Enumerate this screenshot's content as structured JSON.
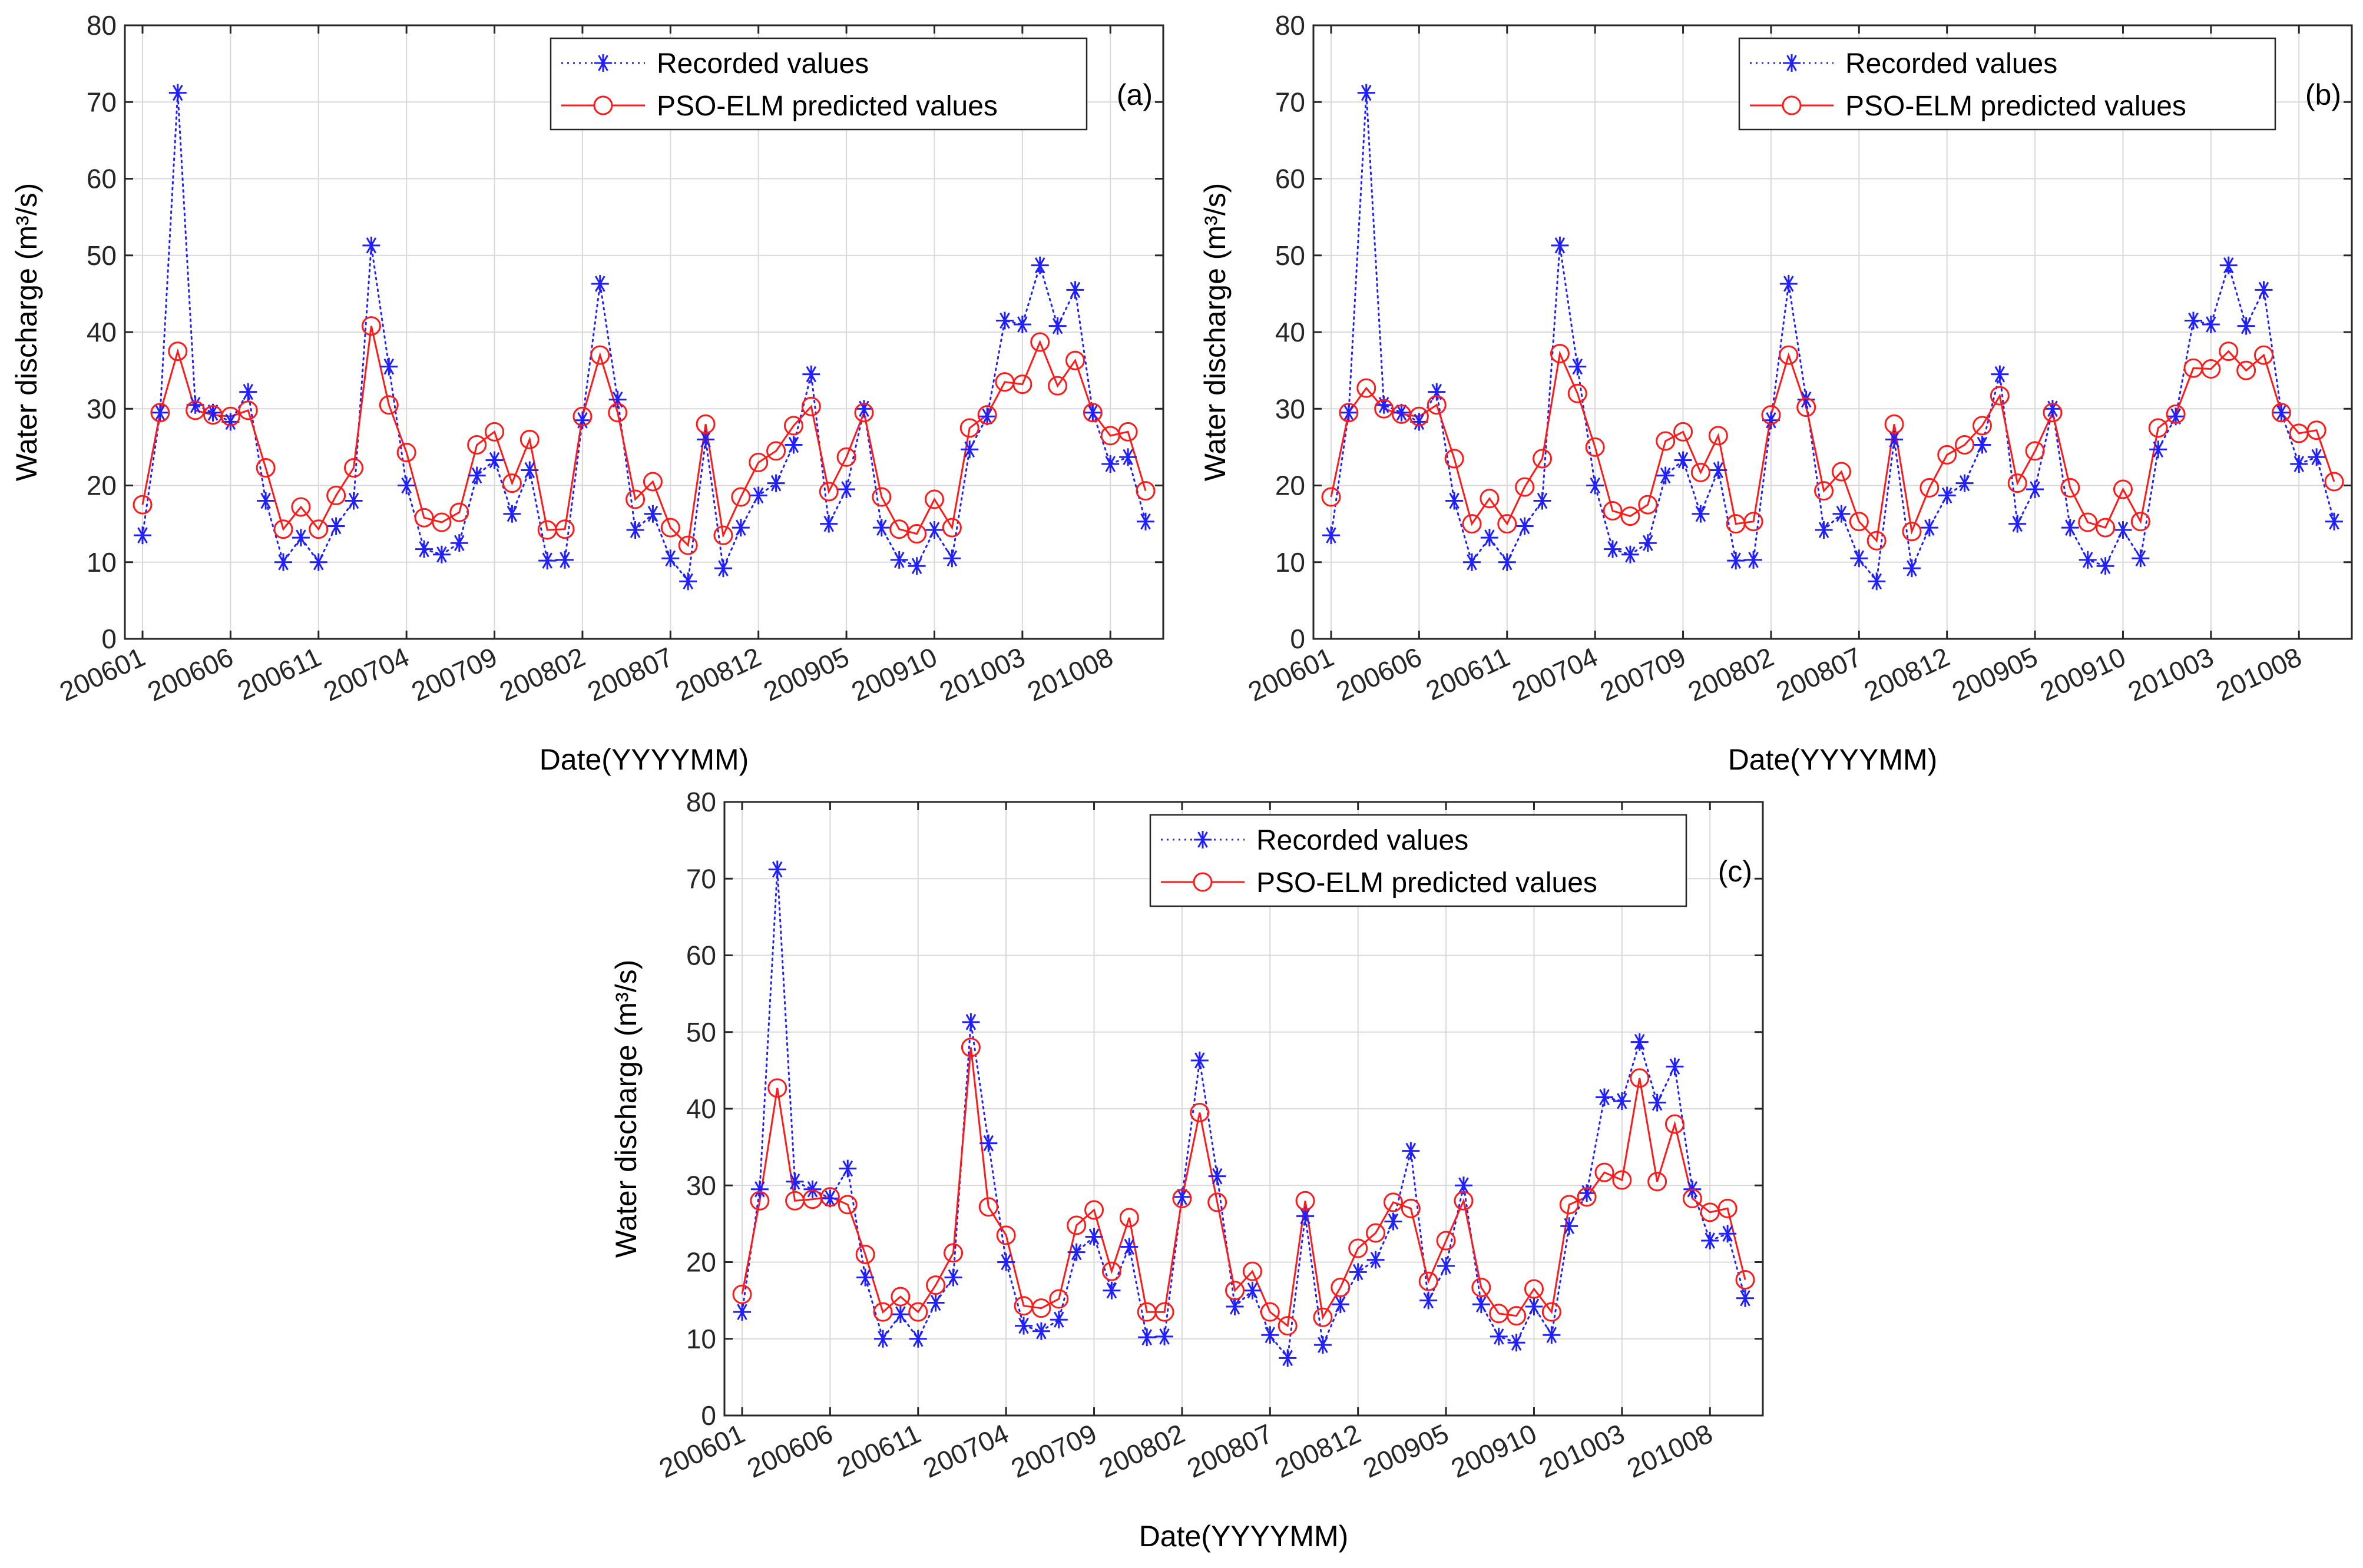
{
  "colors": {
    "recorded": "#1f1fff",
    "predicted": "#ff1a1a",
    "axis": "#262626",
    "grid": "#d9d9d9"
  },
  "chart_data": [
    {
      "type": "line",
      "panel_label": "(a)",
      "xlabel": "Date(YYYYMM)",
      "ylabel": "Water discharge (m³/s)",
      "ylim": [
        0,
        80
      ],
      "yticks": [
        0,
        10,
        20,
        30,
        40,
        50,
        60,
        70,
        80
      ],
      "xticks": [
        {
          "index": 0,
          "label": "200601"
        },
        {
          "index": 5,
          "label": "200606"
        },
        {
          "index": 10,
          "label": "200611"
        },
        {
          "index": 15,
          "label": "200704"
        },
        {
          "index": 20,
          "label": "200709"
        },
        {
          "index": 25,
          "label": "200802"
        },
        {
          "index": 30,
          "label": "200807"
        },
        {
          "index": 35,
          "label": "200812"
        },
        {
          "index": 40,
          "label": "200905"
        },
        {
          "index": 45,
          "label": "200910"
        },
        {
          "index": 50,
          "label": "201003"
        },
        {
          "index": 55,
          "label": "201008"
        }
      ],
      "legend_position": "top-right",
      "series": [
        {
          "name": "Recorded values",
          "style": "dotted-star",
          "values": [
            13.5,
            29.5,
            71.2,
            30.5,
            29.5,
            28.3,
            32.2,
            18.0,
            10.0,
            13.2,
            10.0,
            14.7,
            18.0,
            51.3,
            35.5,
            20.0,
            11.7,
            11.0,
            12.5,
            21.3,
            23.3,
            16.3,
            22.0,
            10.2,
            10.3,
            28.5,
            46.3,
            31.2,
            14.2,
            16.3,
            10.5,
            7.5,
            26.0,
            9.2,
            14.5,
            18.7,
            20.3,
            25.3,
            34.5,
            15.0,
            19.5,
            30.0,
            14.5,
            10.3,
            9.5,
            14.2,
            10.5,
            24.7,
            29.0,
            41.5,
            41.0,
            48.7,
            40.8,
            45.5,
            29.5,
            22.8,
            23.7,
            15.3
          ]
        },
        {
          "name": "PSO-ELM predicted values",
          "style": "solid-circle",
          "values": [
            17.5,
            29.5,
            37.5,
            29.8,
            29.2,
            29.0,
            29.8,
            22.3,
            14.3,
            17.2,
            14.3,
            18.7,
            22.3,
            40.8,
            30.5,
            24.3,
            15.8,
            15.2,
            16.5,
            25.3,
            27.0,
            20.3,
            26.0,
            14.2,
            14.3,
            29.0,
            37.0,
            29.5,
            18.2,
            20.5,
            14.5,
            12.2,
            28.0,
            13.5,
            18.5,
            23.0,
            24.5,
            27.8,
            30.3,
            19.2,
            23.7,
            29.5,
            18.5,
            14.3,
            13.7,
            18.2,
            14.5,
            27.5,
            29.2,
            33.5,
            33.2,
            38.7,
            33.0,
            36.3,
            29.5,
            26.5,
            27.0,
            19.3
          ]
        }
      ]
    },
    {
      "type": "line",
      "panel_label": "(b)",
      "xlabel": "Date(YYYYMM)",
      "ylabel": "Water discharge (m³/s)",
      "ylim": [
        0,
        80
      ],
      "yticks": [
        0,
        10,
        20,
        30,
        40,
        50,
        60,
        70,
        80
      ],
      "xticks": [
        {
          "index": 0,
          "label": "200601"
        },
        {
          "index": 5,
          "label": "200606"
        },
        {
          "index": 10,
          "label": "200611"
        },
        {
          "index": 15,
          "label": "200704"
        },
        {
          "index": 20,
          "label": "200709"
        },
        {
          "index": 25,
          "label": "200802"
        },
        {
          "index": 30,
          "label": "200807"
        },
        {
          "index": 35,
          "label": "200812"
        },
        {
          "index": 40,
          "label": "200905"
        },
        {
          "index": 45,
          "label": "200910"
        },
        {
          "index": 50,
          "label": "201003"
        },
        {
          "index": 55,
          "label": "201008"
        }
      ],
      "legend_position": "top-right",
      "series": [
        {
          "name": "Recorded values",
          "style": "dotted-star",
          "values": [
            13.5,
            29.5,
            71.2,
            30.5,
            29.5,
            28.3,
            32.2,
            18.0,
            10.0,
            13.2,
            10.0,
            14.7,
            18.0,
            51.3,
            35.5,
            20.0,
            11.7,
            11.0,
            12.5,
            21.3,
            23.3,
            16.3,
            22.0,
            10.2,
            10.3,
            28.5,
            46.3,
            31.2,
            14.2,
            16.3,
            10.5,
            7.5,
            26.0,
            9.2,
            14.5,
            18.7,
            20.3,
            25.3,
            34.5,
            15.0,
            19.5,
            30.0,
            14.5,
            10.3,
            9.5,
            14.2,
            10.5,
            24.7,
            29.0,
            41.5,
            41.0,
            48.7,
            40.8,
            45.5,
            29.5,
            22.8,
            23.7,
            15.3
          ]
        },
        {
          "name": "PSO-ELM predicted values",
          "style": "solid-circle",
          "values": [
            18.5,
            29.5,
            32.7,
            30.0,
            29.3,
            29.0,
            30.5,
            23.5,
            15.0,
            18.3,
            15.0,
            19.8,
            23.5,
            37.2,
            32.0,
            25.0,
            16.7,
            16.0,
            17.5,
            25.8,
            27.0,
            21.7,
            26.5,
            15.0,
            15.3,
            29.2,
            37.0,
            30.2,
            19.3,
            21.8,
            15.3,
            12.8,
            28.0,
            14.0,
            19.7,
            24.0,
            25.3,
            27.8,
            31.7,
            20.3,
            24.5,
            29.5,
            19.7,
            15.2,
            14.5,
            19.5,
            15.3,
            27.5,
            29.3,
            35.3,
            35.2,
            37.5,
            35.0,
            37.0,
            29.5,
            26.8,
            27.2,
            20.5
          ]
        }
      ]
    },
    {
      "type": "line",
      "panel_label": "(c)",
      "xlabel": "Date(YYYYMM)",
      "ylabel": "Water discharge (m³/s)",
      "ylim": [
        0,
        80
      ],
      "yticks": [
        0,
        10,
        20,
        30,
        40,
        50,
        60,
        70,
        80
      ],
      "xticks": [
        {
          "index": 0,
          "label": "200601"
        },
        {
          "index": 5,
          "label": "200606"
        },
        {
          "index": 10,
          "label": "200611"
        },
        {
          "index": 15,
          "label": "200704"
        },
        {
          "index": 20,
          "label": "200709"
        },
        {
          "index": 25,
          "label": "200802"
        },
        {
          "index": 30,
          "label": "200807"
        },
        {
          "index": 35,
          "label": "200812"
        },
        {
          "index": 40,
          "label": "200905"
        },
        {
          "index": 45,
          "label": "200910"
        },
        {
          "index": 50,
          "label": "201003"
        },
        {
          "index": 55,
          "label": "201008"
        }
      ],
      "legend_position": "top-right",
      "series": [
        {
          "name": "Recorded values",
          "style": "dotted-star",
          "values": [
            13.5,
            29.5,
            71.2,
            30.5,
            29.5,
            28.3,
            32.2,
            18.0,
            10.0,
            13.2,
            10.0,
            14.7,
            18.0,
            51.3,
            35.5,
            20.0,
            11.7,
            11.0,
            12.5,
            21.3,
            23.3,
            16.3,
            22.0,
            10.2,
            10.3,
            28.5,
            46.3,
            31.2,
            14.2,
            16.3,
            10.5,
            7.5,
            26.0,
            9.2,
            14.5,
            18.7,
            20.3,
            25.3,
            34.5,
            15.0,
            19.5,
            30.0,
            14.5,
            10.3,
            9.5,
            14.2,
            10.5,
            24.7,
            29.0,
            41.5,
            41.0,
            48.7,
            40.8,
            45.5,
            29.5,
            22.8,
            23.7,
            15.3
          ]
        },
        {
          "name": "PSO-ELM predicted values",
          "style": "solid-circle",
          "values": [
            15.8,
            28.0,
            42.7,
            28.0,
            28.2,
            28.5,
            27.5,
            21.0,
            13.5,
            15.5,
            13.5,
            17.0,
            21.2,
            48.0,
            27.2,
            23.5,
            14.3,
            14.0,
            15.2,
            24.8,
            26.8,
            18.8,
            25.8,
            13.5,
            13.5,
            28.3,
            39.5,
            27.8,
            16.3,
            18.8,
            13.5,
            11.7,
            28.0,
            12.8,
            16.7,
            21.8,
            23.8,
            27.8,
            27.0,
            17.5,
            22.8,
            28.0,
            16.7,
            13.3,
            13.0,
            16.5,
            13.5,
            27.5,
            28.5,
            31.7,
            30.7,
            44.0,
            30.5,
            38.0,
            28.3,
            26.5,
            27.0,
            17.7
          ]
        }
      ]
    }
  ]
}
